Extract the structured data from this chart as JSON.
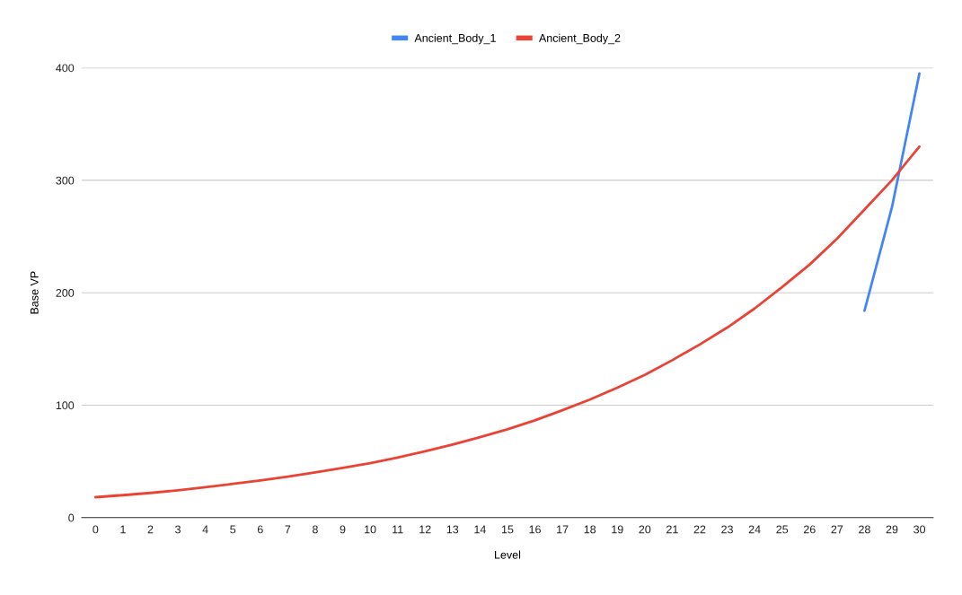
{
  "chart_data": {
    "type": "line",
    "xlabel": "Level",
    "ylabel": "Base VP",
    "categories": [
      "0",
      "1",
      "2",
      "3",
      "4",
      "5",
      "6",
      "7",
      "8",
      "9",
      "10",
      "11",
      "12",
      "13",
      "14",
      "15",
      "16",
      "17",
      "18",
      "19",
      "20",
      "21",
      "22",
      "23",
      "24",
      "25",
      "26",
      "27",
      "28",
      "29",
      "30"
    ],
    "series": [
      {
        "name": "Ancient_Body_1",
        "color": "#4285f4",
        "values": [
          null,
          null,
          null,
          null,
          null,
          null,
          null,
          null,
          null,
          null,
          null,
          null,
          null,
          null,
          null,
          null,
          null,
          null,
          null,
          null,
          null,
          null,
          null,
          null,
          null,
          null,
          null,
          null,
          184,
          276,
          395
        ]
      },
      {
        "name": "Ancient_Body_2",
        "color": "#ea4335",
        "values": [
          18.2,
          20,
          22,
          24.3,
          27,
          30,
          33,
          36.5,
          40.3,
          44.2,
          48.5,
          53.5,
          59,
          65,
          71.5,
          78.5,
          86.5,
          95.5,
          105,
          115.5,
          127,
          140,
          154,
          169,
          186,
          205,
          225,
          248,
          274,
          300,
          330
        ]
      }
    ],
    "ylim": [
      0,
      400
    ],
    "yticks": [
      0,
      100,
      200,
      300,
      400
    ],
    "grid": "y",
    "legend": "top",
    "marker": "none",
    "line_style": "solid"
  }
}
